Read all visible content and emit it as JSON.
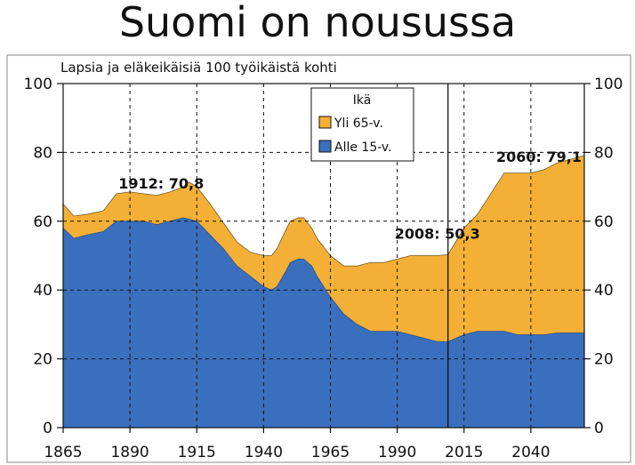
{
  "slide": {
    "title": "Suomi on nousussa"
  },
  "chart_data": {
    "type": "area",
    "subtitle": "Lapsia ja eläkeikäisiä 100 työikäistä kohti",
    "x_ticks": [
      1865,
      1890,
      1915,
      1940,
      1965,
      1990,
      2015,
      2040
    ],
    "y_ticks": [
      0,
      20,
      40,
      60,
      80,
      100
    ],
    "xlim": [
      1865,
      2060
    ],
    "ylim": [
      0,
      100
    ],
    "grid": "dashed",
    "legend": {
      "title": "Ikä",
      "position": "top-center",
      "items": [
        {
          "label": "Yli 65-v.",
          "color": "#f4b036"
        },
        {
          "label": "Alle 15-v.",
          "color": "#3a6fbe"
        }
      ]
    },
    "divider_year": 2009,
    "series": [
      {
        "name": "Alle 15-v.",
        "color": "#3a6fbe",
        "x": [
          1865,
          1869,
          1874,
          1880,
          1885,
          1890,
          1895,
          1900,
          1905,
          1910,
          1915,
          1920,
          1925,
          1930,
          1935,
          1940,
          1943,
          1945,
          1948,
          1950,
          1953,
          1955,
          1958,
          1960,
          1965,
          1970,
          1975,
          1980,
          1985,
          1990,
          1995,
          2000,
          2005,
          2009,
          2015,
          2020,
          2025,
          2030,
          2035,
          2040,
          2045,
          2050,
          2055,
          2060
        ],
        "values": [
          58,
          55,
          56,
          57,
          60,
          60,
          60,
          59,
          60,
          61,
          60,
          56,
          52,
          47,
          44,
          41,
          40,
          41,
          45,
          48,
          49,
          49,
          47,
          44,
          38,
          33,
          30,
          28,
          28,
          28,
          27,
          26,
          25,
          25,
          27,
          28,
          28,
          28,
          27,
          27,
          27,
          27.5,
          27.5,
          27.5
        ]
      },
      {
        "name": "Yli 65-v.",
        "color": "#f4b036",
        "x": [
          1865,
          1869,
          1874,
          1880,
          1885,
          1890,
          1895,
          1900,
          1905,
          1910,
          1912,
          1915,
          1920,
          1925,
          1930,
          1935,
          1940,
          1943,
          1945,
          1948,
          1950,
          1953,
          1955,
          1958,
          1960,
          1965,
          1970,
          1975,
          1980,
          1985,
          1990,
          1995,
          2000,
          2005,
          2009,
          2015,
          2020,
          2025,
          2030,
          2035,
          2040,
          2045,
          2050,
          2055,
          2060
        ],
        "values": [
          7,
          6.5,
          6,
          6,
          8,
          8.5,
          8,
          8.5,
          8.5,
          9,
          10.8,
          10,
          9,
          7.5,
          7,
          7,
          9,
          10,
          11,
          12,
          12,
          12,
          12,
          11,
          11,
          12,
          14,
          17,
          20,
          20,
          21,
          23,
          24,
          25,
          25.3,
          31,
          34,
          40,
          46,
          47,
          47,
          48,
          49.5,
          50.5,
          51.6
        ]
      }
    ],
    "annotations": [
      {
        "text": "1912: 70,8",
        "x": 1912,
        "y": 70.8
      },
      {
        "text": "2008: 50,3",
        "x": 2008,
        "y": 50.3
      },
      {
        "text": "2060: 79,1",
        "x": 2060,
        "y": 79.1
      }
    ]
  }
}
